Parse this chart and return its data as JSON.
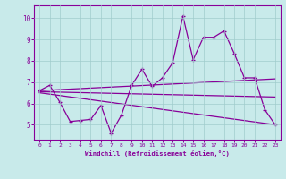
{
  "xlabel": "Windchill (Refroidissement éolien,°C)",
  "bg_color": "#c8eaea",
  "line_color": "#880099",
  "xlim": [
    -0.5,
    23.5
  ],
  "ylim": [
    4.3,
    10.6
  ],
  "xticks": [
    0,
    1,
    2,
    3,
    4,
    5,
    6,
    7,
    8,
    9,
    10,
    11,
    12,
    13,
    14,
    15,
    16,
    17,
    18,
    19,
    20,
    21,
    22,
    23
  ],
  "yticks": [
    5,
    6,
    7,
    8,
    9,
    10
  ],
  "grid_color": "#a0cccc",
  "series1_x": [
    0,
    1,
    2,
    3,
    4,
    5,
    6,
    7,
    8,
    9,
    10,
    11,
    12,
    13,
    14,
    15,
    16,
    17,
    18,
    19,
    20,
    21,
    22,
    23
  ],
  "series1_y": [
    6.6,
    6.85,
    6.05,
    5.15,
    5.2,
    5.25,
    5.9,
    4.6,
    5.45,
    6.85,
    7.6,
    6.8,
    7.2,
    7.9,
    10.1,
    8.05,
    9.1,
    9.1,
    9.4,
    8.35,
    7.2,
    7.2,
    5.7,
    5.0
  ],
  "series2_x": [
    0,
    23
  ],
  "series2_y": [
    6.6,
    7.15
  ],
  "series3_x": [
    0,
    23
  ],
  "series3_y": [
    6.55,
    6.3
  ],
  "series4_x": [
    0,
    23
  ],
  "series4_y": [
    6.5,
    5.0
  ]
}
